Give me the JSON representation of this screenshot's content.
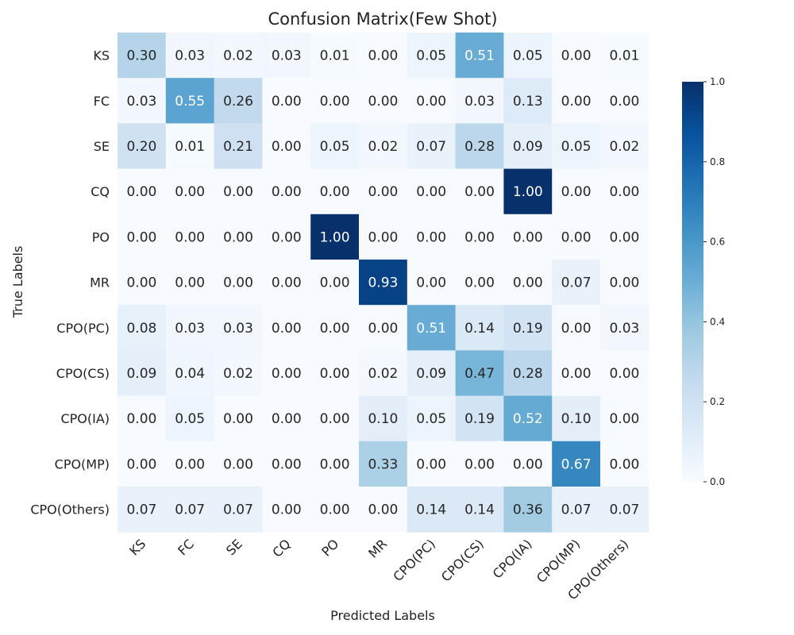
{
  "chart_data": {
    "type": "heatmap",
    "title": "Confusion Matrix(Few Shot)",
    "xlabel": "Predicted Labels",
    "ylabel": "True Labels",
    "row_labels": [
      "KS",
      "FC",
      "SE",
      "CQ",
      "PO",
      "MR",
      "CPO(PC)",
      "CPO(CS)",
      "CPO(IA)",
      "CPO(MP)",
      "CPO(Others)"
    ],
    "col_labels": [
      "KS",
      "FC",
      "SE",
      "CQ",
      "PO",
      "MR",
      "CPO(PC)",
      "CPO(CS)",
      "CPO(IA)",
      "CPO(MP)",
      "CPO(Others)"
    ],
    "values": [
      [
        0.3,
        0.03,
        0.02,
        0.03,
        0.01,
        0.0,
        0.05,
        0.51,
        0.05,
        0.0,
        0.01
      ],
      [
        0.03,
        0.55,
        0.26,
        0.0,
        0.0,
        0.0,
        0.0,
        0.03,
        0.13,
        0.0,
        0.0
      ],
      [
        0.2,
        0.01,
        0.21,
        0.0,
        0.05,
        0.02,
        0.07,
        0.28,
        0.09,
        0.05,
        0.02
      ],
      [
        0.0,
        0.0,
        0.0,
        0.0,
        0.0,
        0.0,
        0.0,
        0.0,
        1.0,
        0.0,
        0.0
      ],
      [
        0.0,
        0.0,
        0.0,
        0.0,
        1.0,
        0.0,
        0.0,
        0.0,
        0.0,
        0.0,
        0.0
      ],
      [
        0.0,
        0.0,
        0.0,
        0.0,
        0.0,
        0.93,
        0.0,
        0.0,
        0.0,
        0.07,
        0.0
      ],
      [
        0.08,
        0.03,
        0.03,
        0.0,
        0.0,
        0.0,
        0.51,
        0.14,
        0.19,
        0.0,
        0.03
      ],
      [
        0.09,
        0.04,
        0.02,
        0.0,
        0.0,
        0.02,
        0.09,
        0.47,
        0.28,
        0.0,
        0.0
      ],
      [
        0.0,
        0.05,
        0.0,
        0.0,
        0.0,
        0.1,
        0.05,
        0.19,
        0.52,
        0.1,
        0.0
      ],
      [
        0.0,
        0.0,
        0.0,
        0.0,
        0.0,
        0.33,
        0.0,
        0.0,
        0.0,
        0.67,
        0.0
      ],
      [
        0.07,
        0.07,
        0.07,
        0.0,
        0.0,
        0.0,
        0.14,
        0.14,
        0.36,
        0.07,
        0.07
      ]
    ],
    "value_range": [
      0.0,
      1.0
    ],
    "colormap": "Blues",
    "colorbar": {
      "ticks": [
        0.0,
        0.2,
        0.4,
        0.6,
        0.8,
        1.0
      ],
      "tick_labels": [
        "0.0",
        "0.2",
        "0.4",
        "0.6",
        "0.8",
        "1.0"
      ],
      "placement": "right"
    },
    "grid": false
  }
}
